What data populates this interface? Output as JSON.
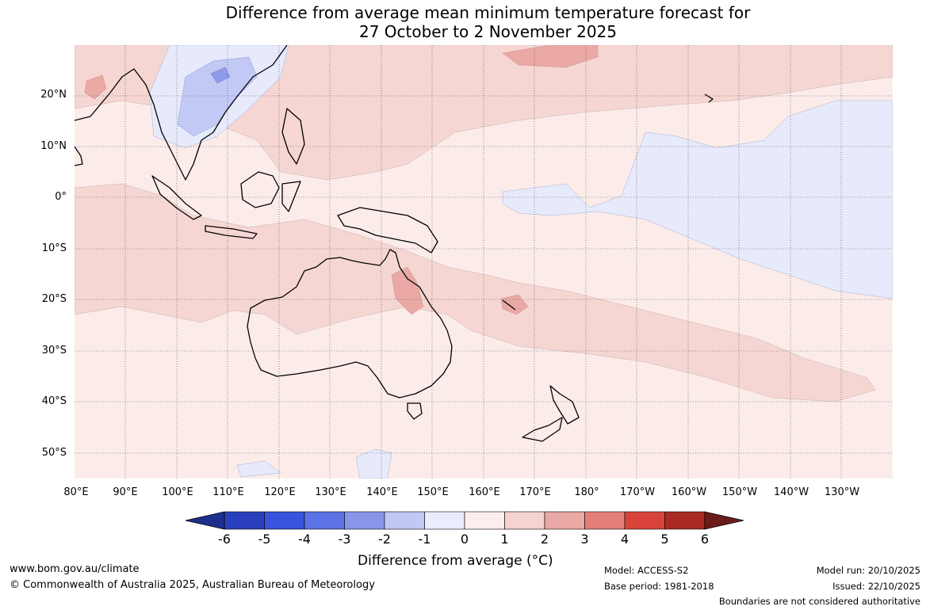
{
  "title": {
    "line1": "Difference from average mean minimum temperature forecast for",
    "line2": "27 October to 2 November 2025"
  },
  "map": {
    "latitude_labels": [
      "20°N",
      "10°N",
      "0°",
      "10°S",
      "20°S",
      "30°S",
      "40°S",
      "50°S"
    ],
    "longitude_labels": [
      "80°E",
      "90°E",
      "100°E",
      "110°E",
      "120°E",
      "130°E",
      "140°E",
      "150°E",
      "160°E",
      "170°E",
      "180°",
      "170°W",
      "160°W",
      "150°W",
      "140°W",
      "130°W"
    ],
    "colors": {
      "ocean_background": "#fbecea",
      "anomaly_0_to_1": "#fbecea",
      "anomaly_1_to_2": "#f5d6d3",
      "anomaly_2_to_3": "#eaa9a5",
      "anomaly_minus1_to_0": "#e6eafb",
      "anomaly_minus2_to_minus1": "#c3c9f5",
      "anomaly_minus3_to_minus2": "#8f9be9"
    }
  },
  "legend": {
    "title": "Difference from average (°C)",
    "ticks": [
      "-6",
      "-5",
      "-4",
      "-3",
      "-2",
      "-1",
      "0",
      "1",
      "2",
      "3",
      "4",
      "5",
      "6"
    ],
    "colors": [
      "#1d2f8c",
      "#2a3fbd",
      "#3a53dc",
      "#5b73e4",
      "#8896ea",
      "#c2c8f4",
      "#e9ecfb",
      "#fbeeec",
      "#f4d3d0",
      "#eaa9a4",
      "#e47f78",
      "#d9443a",
      "#a92a24",
      "#6b1c1a"
    ]
  },
  "footer": {
    "website": "www.bom.gov.au/climate",
    "copyright": "© Commonwealth of Australia 2025, Australian Bureau of Meteorology",
    "model": "Model: ACCESS-S2",
    "base_period": "Base period: 1981-2018",
    "model_run": "Model run: 20/10/2025",
    "issued": "Issued: 22/10/2025",
    "disclaimer": "Boundaries are not considered authoritative"
  }
}
